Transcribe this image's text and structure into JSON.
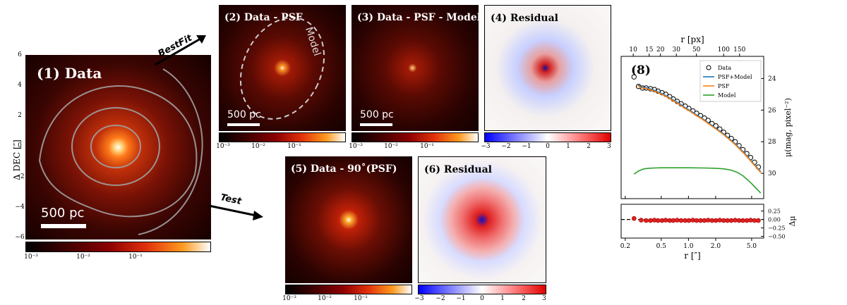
{
  "panels": {
    "p1": {
      "title": "(1) Data",
      "scalebar": "500 pc",
      "ylabel": "Δ DEC  [″]",
      "yticks": [
        "6",
        "4",
        "2",
        "0",
        "−2",
        "−4",
        "−6"
      ]
    },
    "p2": {
      "title": "(2) Data - PSF",
      "scalebar": "500 pc",
      "annotation": "Model"
    },
    "p3": {
      "title": "(3) Data - PSF - Model",
      "scalebar": "500 pc"
    },
    "p4": {
      "title": "(4) Residual"
    },
    "p5": {
      "title": "(5) Data - 90˚(PSF)"
    },
    "p6": {
      "title": "(6) Residual"
    }
  },
  "arrows": {
    "bestfit": "BestFit",
    "test": "Test"
  },
  "colorbars": {
    "log": [
      "10⁻³",
      "10⁻²",
      "10⁻¹"
    ],
    "div": [
      "−3",
      "−2",
      "−1",
      "0",
      "1",
      "2",
      "3"
    ]
  },
  "chart_data": [
    {
      "type": "line",
      "title": "(8)",
      "xlabel": "r [″]",
      "xlabel_top": "r [px]",
      "ylabel": "μ(mag, pixel⁻²)",
      "xscale": "log",
      "xlim": [
        0.18,
        6.8
      ],
      "ylim": [
        31.6,
        22.6
      ],
      "xticks": [
        "0.2",
        "0.5",
        "1.0",
        "2.0",
        "5.0"
      ],
      "xticks_top": [
        "10",
        "15",
        "20",
        "30",
        "50",
        "100",
        "150"
      ],
      "yticks": [
        "24",
        "26",
        "28",
        "30"
      ],
      "legend": [
        "Data",
        "PSF+Model",
        "PSF",
        "Model"
      ],
      "legend_position": "top-right",
      "series": [
        {
          "name": "Data",
          "style": "open-circle",
          "x": [
            0.25,
            0.28,
            0.31,
            0.34,
            0.38,
            0.42,
            0.46,
            0.51,
            0.56,
            0.62,
            0.68,
            0.75,
            0.83,
            0.92,
            1.01,
            1.12,
            1.23,
            1.36,
            1.5,
            1.65,
            1.82,
            2.01,
            2.22,
            2.45,
            2.7,
            2.98,
            3.29,
            3.63,
            4.0,
            4.42,
            4.87,
            5.38,
            5.93
          ],
          "y": [
            23.9,
            24.5,
            24.6,
            24.6,
            24.65,
            24.7,
            24.8,
            24.9,
            25.0,
            25.15,
            25.3,
            25.45,
            25.6,
            25.75,
            25.9,
            26.05,
            26.2,
            26.35,
            26.5,
            26.65,
            26.85,
            27.0,
            27.2,
            27.4,
            27.6,
            27.8,
            28.0,
            28.25,
            28.5,
            28.75,
            29.0,
            29.3,
            29.6
          ]
        },
        {
          "name": "PSF+Model",
          "color": "#1f77b4",
          "x": [
            0.27,
            0.3,
            0.35,
            0.4,
            0.46,
            0.53,
            0.61,
            0.7,
            0.8,
            0.92,
            1.06,
            1.22,
            1.4,
            1.61,
            1.85,
            2.13,
            2.45,
            2.82,
            3.24,
            3.73,
            4.29,
            4.93,
            5.67,
            6.3
          ],
          "y": [
            24.35,
            24.55,
            24.6,
            24.7,
            24.85,
            25.0,
            25.2,
            25.4,
            25.6,
            25.85,
            26.05,
            26.3,
            26.5,
            26.75,
            27.0,
            27.25,
            27.5,
            27.8,
            28.1,
            28.45,
            28.8,
            29.2,
            29.6,
            29.9
          ]
        },
        {
          "name": "PSF",
          "color": "#ff7f0e",
          "x": [
            0.27,
            0.3,
            0.35,
            0.4,
            0.46,
            0.53,
            0.61,
            0.7,
            0.8,
            0.92,
            1.06,
            1.22,
            1.4,
            1.61,
            1.85,
            2.13,
            2.45,
            2.82,
            3.24,
            3.73,
            4.29,
            4.93,
            5.67,
            6.3
          ],
          "y": [
            24.4,
            24.6,
            24.65,
            24.75,
            24.9,
            25.05,
            25.25,
            25.45,
            25.65,
            25.9,
            26.1,
            26.35,
            26.55,
            26.8,
            27.05,
            27.3,
            27.55,
            27.85,
            28.15,
            28.5,
            28.85,
            29.25,
            29.65,
            29.95
          ]
        },
        {
          "name": "Model",
          "color": "#2ca02c",
          "x": [
            0.25,
            0.28,
            0.32,
            0.36,
            0.42,
            0.5,
            0.7,
            1.0,
            1.5,
            2.0,
            2.5,
            3.0,
            3.5,
            4.0,
            4.5,
            5.0,
            5.5,
            6.3
          ],
          "y": [
            30.05,
            29.85,
            29.72,
            29.68,
            29.66,
            29.65,
            29.65,
            29.65,
            29.66,
            29.68,
            29.72,
            29.8,
            29.95,
            30.15,
            30.4,
            30.65,
            30.9,
            31.25
          ]
        }
      ]
    },
    {
      "type": "scatter",
      "ylabel": "Δμ",
      "xscale": "log",
      "xlim": [
        0.18,
        6.8
      ],
      "ylim": [
        -0.55,
        0.45
      ],
      "yticks": [
        "0.25",
        "0.00",
        "−0.25",
        "−0.50"
      ],
      "reference_line": 0,
      "series": [
        {
          "name": "Residual",
          "x": [
            0.25,
            0.3,
            0.34,
            0.38,
            0.42,
            0.46,
            0.51,
            0.56,
            0.62,
            0.68,
            0.75,
            0.83,
            0.92,
            1.01,
            1.12,
            1.23,
            1.36,
            1.5,
            1.65,
            1.82,
            2.01,
            2.22,
            2.45,
            2.7,
            2.98,
            3.29,
            3.63,
            4.0,
            4.42,
            4.87,
            5.38,
            5.93
          ],
          "y": [
            0.03,
            -0.02,
            -0.03,
            -0.03,
            -0.02,
            -0.03,
            -0.03,
            -0.02,
            -0.03,
            -0.03,
            -0.02,
            -0.03,
            -0.03,
            -0.03,
            -0.02,
            -0.03,
            -0.03,
            -0.03,
            -0.02,
            -0.03,
            -0.03,
            -0.02,
            -0.03,
            -0.03,
            -0.03,
            -0.02,
            -0.03,
            -0.03,
            -0.03,
            -0.02,
            -0.03,
            -0.03
          ]
        }
      ]
    }
  ]
}
